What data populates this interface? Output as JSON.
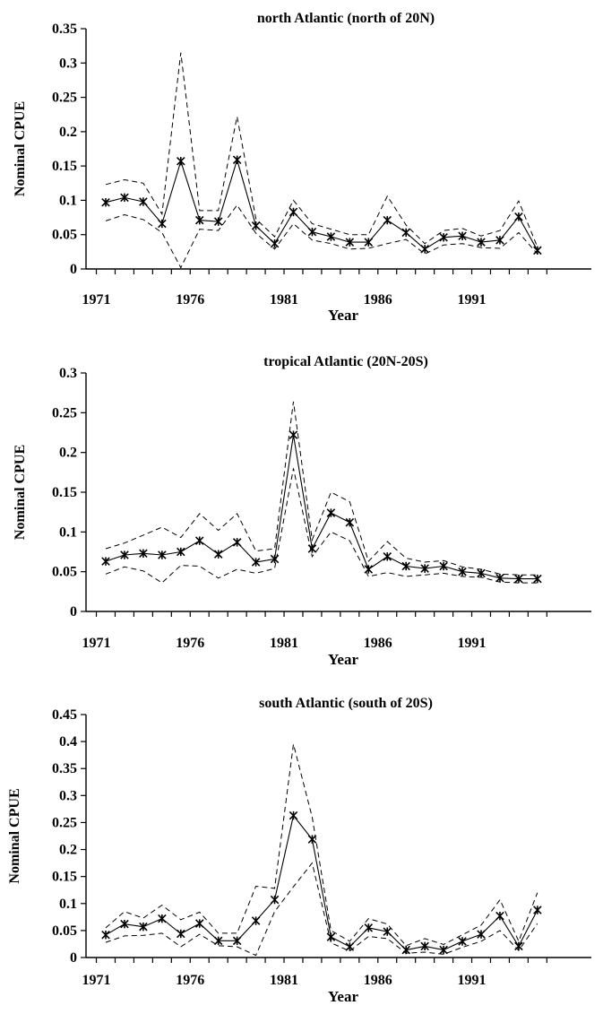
{
  "chart_data": [
    {
      "type": "line",
      "title": "north Atlantic (north of 20N)",
      "xlabel": "Year",
      "ylabel": "Nominal CPUE",
      "xlim": [
        1971,
        1994
      ],
      "ylim": [
        0,
        0.35
      ],
      "x_ticks": [
        1971,
        1976,
        1981,
        1986,
        1991
      ],
      "y_ticks": [
        "0",
        "0.05",
        "0.1",
        "0.15",
        "0.2",
        "0.25",
        "0.3",
        "0.35"
      ],
      "x": [
        1971,
        1972,
        1973,
        1974,
        1975,
        1976,
        1977,
        1978,
        1979,
        1980,
        1981,
        1982,
        1983,
        1984,
        1985,
        1986,
        1987,
        1988,
        1989,
        1990,
        1991,
        1992,
        1993,
        1994
      ],
      "series": [
        {
          "values": [
            0.097,
            0.104,
            0.098,
            0.066,
            0.157,
            0.071,
            0.069,
            0.159,
            0.063,
            0.037,
            0.083,
            0.054,
            0.047,
            0.039,
            0.039,
            0.071,
            0.053,
            0.029,
            0.046,
            0.048,
            0.039,
            0.042,
            0.076,
            0.027
          ]
        },
        {
          "values": [
            0.123,
            0.13,
            0.125,
            0.08,
            0.315,
            0.085,
            0.085,
            0.222,
            0.073,
            0.047,
            0.1,
            0.066,
            0.058,
            0.05,
            0.05,
            0.106,
            0.064,
            0.037,
            0.056,
            0.059,
            0.048,
            0.056,
            0.099,
            0.032
          ]
        },
        {
          "values": [
            0.07,
            0.079,
            0.072,
            0.053,
            0.002,
            0.058,
            0.056,
            0.093,
            0.052,
            0.029,
            0.066,
            0.042,
            0.037,
            0.029,
            0.03,
            0.037,
            0.043,
            0.022,
            0.035,
            0.037,
            0.031,
            0.03,
            0.053,
            0.022
          ]
        }
      ]
    },
    {
      "type": "line",
      "title": "tropical Atlantic (20N-20S)",
      "xlabel": "Year",
      "ylabel": "Nominal CPUE",
      "xlim": [
        1971,
        1994
      ],
      "ylim": [
        0,
        0.3
      ],
      "x_ticks": [
        1971,
        1976,
        1981,
        1986,
        1991
      ],
      "y_ticks": [
        "0",
        "0.05",
        "0.1",
        "0.15",
        "0.2",
        "0.25",
        "0.3"
      ],
      "x": [
        1971,
        1972,
        1973,
        1974,
        1975,
        1976,
        1977,
        1978,
        1979,
        1980,
        1981,
        1982,
        1983,
        1984,
        1985,
        1986,
        1987,
        1988,
        1989,
        1990,
        1991,
        1992,
        1993,
        1994
      ],
      "series": [
        {
          "values": [
            0.063,
            0.071,
            0.073,
            0.071,
            0.075,
            0.089,
            0.072,
            0.087,
            0.062,
            0.066,
            0.222,
            0.079,
            0.124,
            0.112,
            0.053,
            0.069,
            0.057,
            0.054,
            0.057,
            0.05,
            0.048,
            0.042,
            0.041,
            0.041
          ]
        },
        {
          "values": [
            0.079,
            0.086,
            0.096,
            0.106,
            0.093,
            0.123,
            0.102,
            0.123,
            0.076,
            0.079,
            0.264,
            0.09,
            0.15,
            0.138,
            0.063,
            0.088,
            0.067,
            0.062,
            0.064,
            0.056,
            0.053,
            0.047,
            0.046,
            0.046
          ]
        },
        {
          "values": [
            0.047,
            0.056,
            0.051,
            0.036,
            0.058,
            0.057,
            0.042,
            0.053,
            0.048,
            0.054,
            0.18,
            0.069,
            0.1,
            0.089,
            0.044,
            0.049,
            0.044,
            0.046,
            0.048,
            0.044,
            0.043,
            0.037,
            0.036,
            0.036
          ]
        }
      ]
    },
    {
      "type": "line",
      "title": "south Atlantic (south of 20S)",
      "xlabel": "Year",
      "ylabel": "Nominal CPUE",
      "xlim": [
        1971,
        1994
      ],
      "ylim": [
        0,
        0.45
      ],
      "x_ticks": [
        1971,
        1976,
        1981,
        1986,
        1991
      ],
      "y_ticks": [
        "0",
        "0.05",
        "0.1",
        "0.15",
        "0.2",
        "0.25",
        "0.3",
        "0.35",
        "0.4",
        "0.45"
      ],
      "x": [
        1971,
        1972,
        1973,
        1974,
        1975,
        1976,
        1977,
        1978,
        1979,
        1980,
        1981,
        1982,
        1983,
        1984,
        1985,
        1986,
        1987,
        1988,
        1989,
        1990,
        1991,
        1992,
        1993,
        1994
      ],
      "series": [
        {
          "values": [
            0.042,
            0.062,
            0.057,
            0.072,
            0.044,
            0.063,
            0.031,
            0.031,
            0.068,
            0.107,
            0.263,
            0.219,
            0.038,
            0.02,
            0.055,
            0.048,
            0.014,
            0.021,
            0.014,
            0.03,
            0.043,
            0.077,
            0.021,
            0.088
          ]
        },
        {
          "values": [
            0.055,
            0.085,
            0.073,
            0.097,
            0.07,
            0.084,
            0.045,
            0.045,
            0.132,
            0.128,
            0.395,
            0.26,
            0.05,
            0.03,
            0.072,
            0.062,
            0.022,
            0.035,
            0.024,
            0.042,
            0.06,
            0.107,
            0.03,
            0.12
          ]
        },
        {
          "values": [
            0.028,
            0.04,
            0.041,
            0.045,
            0.02,
            0.043,
            0.022,
            0.02,
            0.004,
            0.085,
            0.131,
            0.175,
            0.027,
            0.012,
            0.039,
            0.035,
            0.008,
            0.01,
            0.006,
            0.019,
            0.03,
            0.05,
            0.013,
            0.063
          ]
        }
      ]
    }
  ]
}
